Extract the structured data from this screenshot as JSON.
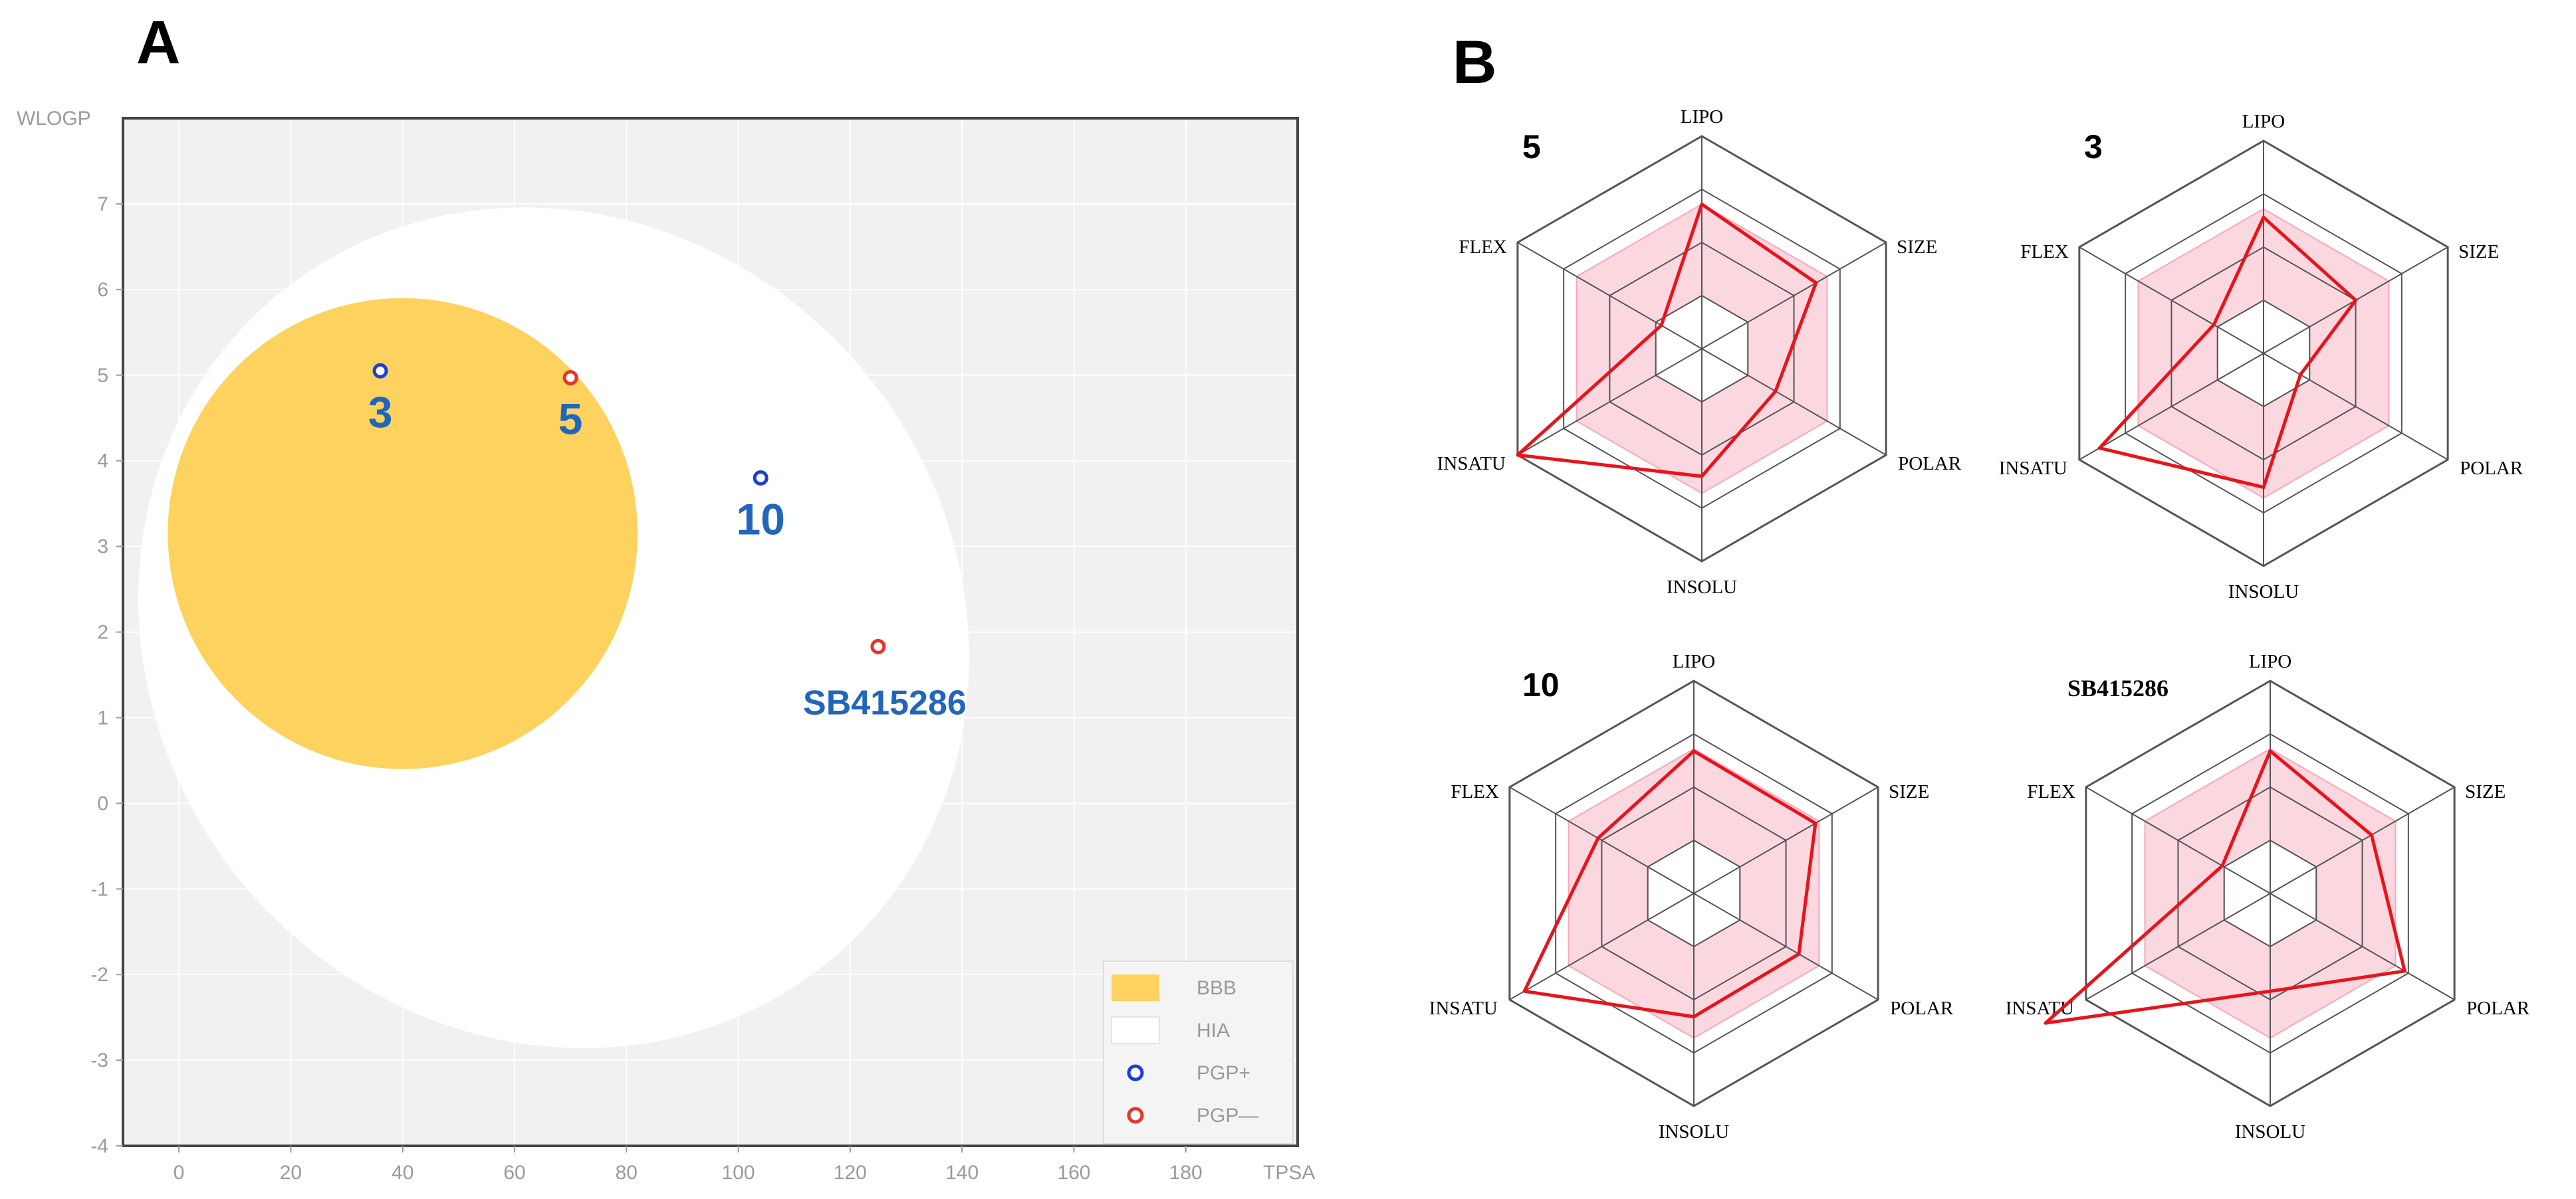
{
  "chart_data": [
    {
      "type": "scatter",
      "panel": "A",
      "title": "",
      "xlabel": "TPSA",
      "ylabel": "WLOGP",
      "xlim": [
        -10,
        200
      ],
      "ylim": [
        -4,
        8
      ],
      "xticks": [
        0,
        20,
        40,
        60,
        80,
        100,
        120,
        140,
        160,
        180
      ],
      "yticks": [
        -4,
        -3,
        -2,
        -1,
        0,
        1,
        2,
        3,
        4,
        5,
        6,
        7
      ],
      "regions": [
        {
          "name": "HIA",
          "color": "#ffffff",
          "center": [
            67,
            2.05
          ],
          "rx": 72,
          "ry": 5.05,
          "angle_deg": -40
        },
        {
          "name": "BBB",
          "color": "#fdd25f",
          "center": [
            40,
            3.15
          ],
          "rx": 42,
          "ry": 2.75,
          "angle_deg": 0
        }
      ],
      "points": [
        {
          "label": "3",
          "x": 36,
          "y": 5.05,
          "group": "PGP+"
        },
        {
          "label": "5",
          "x": 70,
          "y": 4.97,
          "group": "PGP—"
        },
        {
          "label": "10",
          "x": 104,
          "y": 3.8,
          "group": "PGP+"
        },
        {
          "label": "SB415286",
          "x": 125,
          "y": 1.83,
          "group": "PGP—"
        }
      ],
      "legend": [
        {
          "name": "BBB",
          "kind": "patch",
          "color": "#fdd25f"
        },
        {
          "name": "HIA",
          "kind": "patch",
          "color": "#ffffff"
        },
        {
          "name": "PGP+",
          "kind": "marker",
          "color": "#1a3fd6"
        },
        {
          "name": "PGP—",
          "kind": "marker",
          "color": "#e8342a"
        }
      ],
      "legend_position": "bottom-right",
      "colors": {
        "background": "#f1f1f1",
        "frame": "#444444",
        "grid": "#ffffff",
        "label": "#2266bb"
      }
    },
    {
      "type": "radar",
      "panel": "B",
      "axes": [
        "LIPO",
        "SIZE",
        "POLAR",
        "INSOLU",
        "INSATU",
        "FLEX"
      ],
      "rmax": 1,
      "optimal_range": {
        "inner": 0.25,
        "outer": 0.68
      },
      "rings": [
        0.25,
        0.5,
        0.75,
        1.0
      ],
      "colors": {
        "line": "#e8141b",
        "band": "#fbd7e0",
        "band_edge": "#f5a8bb",
        "ring": "#555555"
      },
      "series": [
        {
          "name": "5",
          "values": [
            0.68,
            0.62,
            0.4,
            0.6,
            1.0,
            0.22
          ]
        },
        {
          "name": "3",
          "values": [
            0.64,
            0.5,
            0.2,
            0.63,
            0.89,
            0.27
          ]
        },
        {
          "name": "10",
          "values": [
            0.67,
            0.66,
            0.57,
            0.58,
            0.92,
            0.52
          ]
        },
        {
          "name": "SB415286",
          "values": [
            0.67,
            0.55,
            0.73,
            0.46,
            1.22,
            0.26
          ]
        }
      ]
    }
  ],
  "figure": {
    "panel_a_letter": "A",
    "panel_b_letter": "B"
  }
}
